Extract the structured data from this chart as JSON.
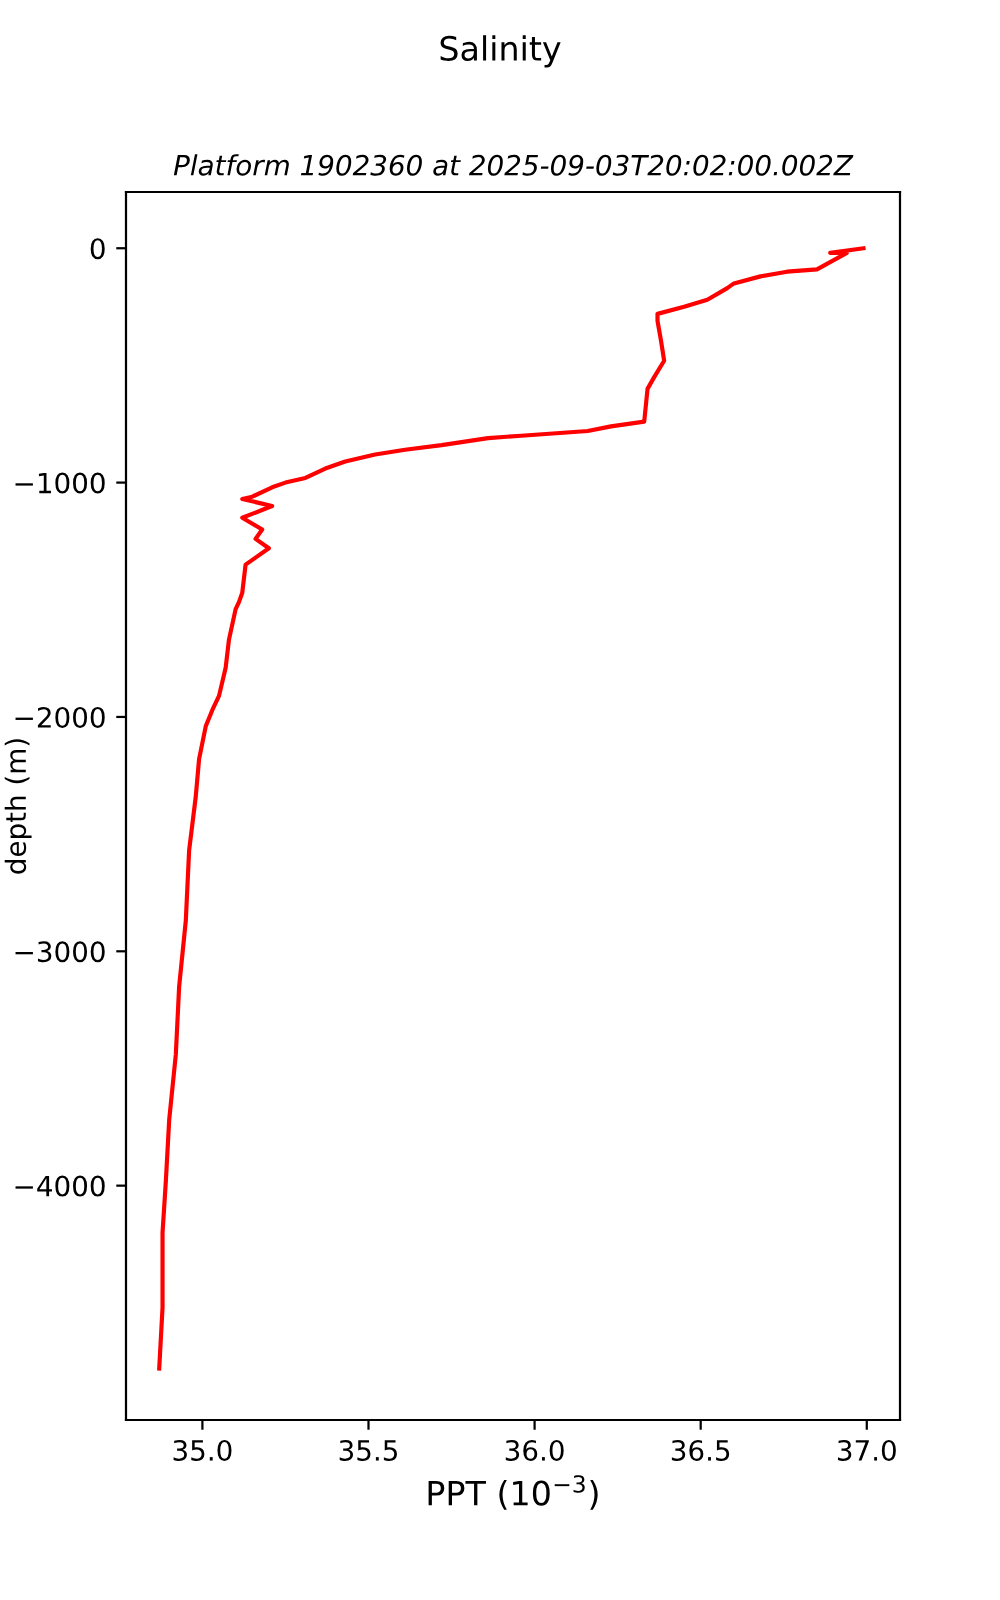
{
  "chart_data": {
    "type": "line",
    "title": "Salinity",
    "subtitle": "Platform 1902360 at 2025-09-03T20:02:00.002Z",
    "xlabel": "PPT (10$^{−3}$)",
    "ylabel": "depth (m)",
    "series": [
      {
        "color": "#ff0000",
        "x": [
          36.99,
          36.89,
          36.94,
          36.85,
          36.76,
          36.68,
          36.6,
          36.58,
          36.52,
          36.45,
          36.37,
          36.37,
          36.38,
          36.39,
          36.36,
          36.34,
          36.33,
          36.23,
          36.16,
          35.96,
          35.86,
          35.72,
          35.61,
          35.52,
          35.43,
          35.37,
          35.31,
          35.25,
          35.21,
          35.15,
          35.12,
          35.21,
          35.12,
          35.18,
          35.16,
          35.2,
          35.16,
          35.13,
          35.12,
          35.11,
          35.1,
          35.08,
          35.07,
          35.05,
          35.03,
          35.01,
          34.99,
          34.98,
          34.96,
          34.95,
          34.93,
          34.92,
          34.9,
          34.89,
          34.88,
          34.88,
          34.87
        ],
        "values": [
          0,
          -20,
          -20,
          -90,
          -100,
          -120,
          -150,
          -170,
          -220,
          -250,
          -280,
          -310,
          -390,
          -480,
          -550,
          -600,
          -740,
          -760,
          -780,
          -800,
          -810,
          -840,
          -860,
          -880,
          -910,
          -940,
          -980,
          -1000,
          -1020,
          -1060,
          -1070,
          -1100,
          -1150,
          -1200,
          -1240,
          -1280,
          -1320,
          -1350,
          -1470,
          -1510,
          -1540,
          -1670,
          -1790,
          -1910,
          -1970,
          -2040,
          -2180,
          -2340,
          -2570,
          -2870,
          -3150,
          -3440,
          -3720,
          -3980,
          -4200,
          -4520,
          -4780
        ]
      }
    ],
    "xlim": [
      34.77,
      37.1
    ],
    "ylim": [
      -5000,
      240
    ],
    "xticks": [
      {
        "value": 35,
        "label": "35.0"
      },
      35.5,
      {
        "value": 36,
        "label": "36.0"
      },
      36.5,
      {
        "value": 37,
        "label": "37.0"
      }
    ],
    "yticks": [
      0,
      -1000,
      -2000,
      -3000,
      -4000
    ],
    "grid": false,
    "marker": "none",
    "line_style": "solid"
  }
}
